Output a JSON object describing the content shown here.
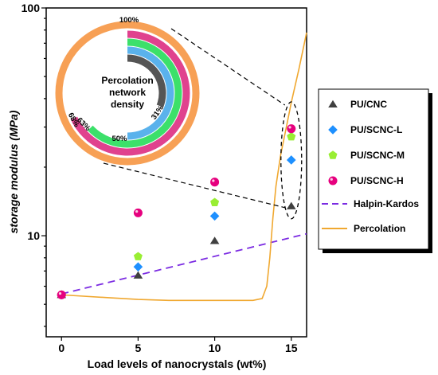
{
  "chart_data": {
    "type": "scatter",
    "xlabel": "Load levels of nanocrystals (wt%)",
    "ylabel": "storage modulus (MPa)",
    "x_ticks": [
      0,
      5,
      10,
      15
    ],
    "y_scale": "log",
    "y_ticks": [
      10,
      100
    ],
    "xlim": [
      -1,
      16
    ],
    "ylim": [
      3.6,
      100
    ],
    "grid": false,
    "legend_position": "right",
    "series": [
      {
        "name": "PU/CNC",
        "marker": "triangle",
        "color": "#404040",
        "x": [
          0,
          5,
          10,
          15
        ],
        "y": [
          5.5,
          6.7,
          9.5,
          13.5
        ]
      },
      {
        "name": "PU/SCNC-L",
        "marker": "diamond",
        "color": "#1e90ff",
        "x": [
          0,
          5,
          10,
          15
        ],
        "y": [
          5.5,
          7.3,
          12.2,
          21.5
        ]
      },
      {
        "name": "PU/SCNC-M",
        "marker": "pentagon",
        "color": "#99ee33",
        "x": [
          0,
          5,
          10,
          15
        ],
        "y": [
          5.5,
          8.1,
          14.0,
          27.2
        ]
      },
      {
        "name": "PU/SCNC-H",
        "marker": "circle",
        "color": "#e6007e",
        "x": [
          0,
          5,
          10,
          15
        ],
        "y": [
          5.5,
          12.6,
          17.2,
          29.5
        ]
      }
    ],
    "lines": [
      {
        "name": "Halpin-Kardos",
        "style": "dashed",
        "color": "#7b2be2",
        "x": [
          0,
          16
        ],
        "y": [
          5.55,
          10.2
        ]
      },
      {
        "name": "Percolation",
        "style": "solid",
        "color": "#f0a830",
        "x": [
          0,
          1,
          3,
          5,
          7,
          9,
          11,
          12.5,
          13.1,
          13.4,
          13.6,
          13.8,
          14.0,
          14.3,
          14.7,
          15.0,
          15.5,
          16.0
        ],
        "y": [
          5.5,
          5.45,
          5.35,
          5.25,
          5.2,
          5.2,
          5.2,
          5.2,
          5.3,
          6.0,
          8.0,
          12.0,
          16.5,
          22.5,
          30.5,
          38.5,
          54.0,
          78.0
        ]
      }
    ],
    "inset": {
      "type": "donut",
      "title_lines": [
        "Percolation",
        "network",
        "density"
      ],
      "rings": [
        {
          "color": "#f7a055",
          "value": 100,
          "label": "100%"
        },
        {
          "color": "#e0428e",
          "value": 68,
          "label": "68%"
        },
        {
          "color": "#3ce06a",
          "value": 63,
          "label": "63%"
        },
        {
          "color": "#5ab2ec",
          "value": 50,
          "label": "50%"
        },
        {
          "color": "#555555",
          "value": 31,
          "label": "31%"
        }
      ]
    }
  }
}
